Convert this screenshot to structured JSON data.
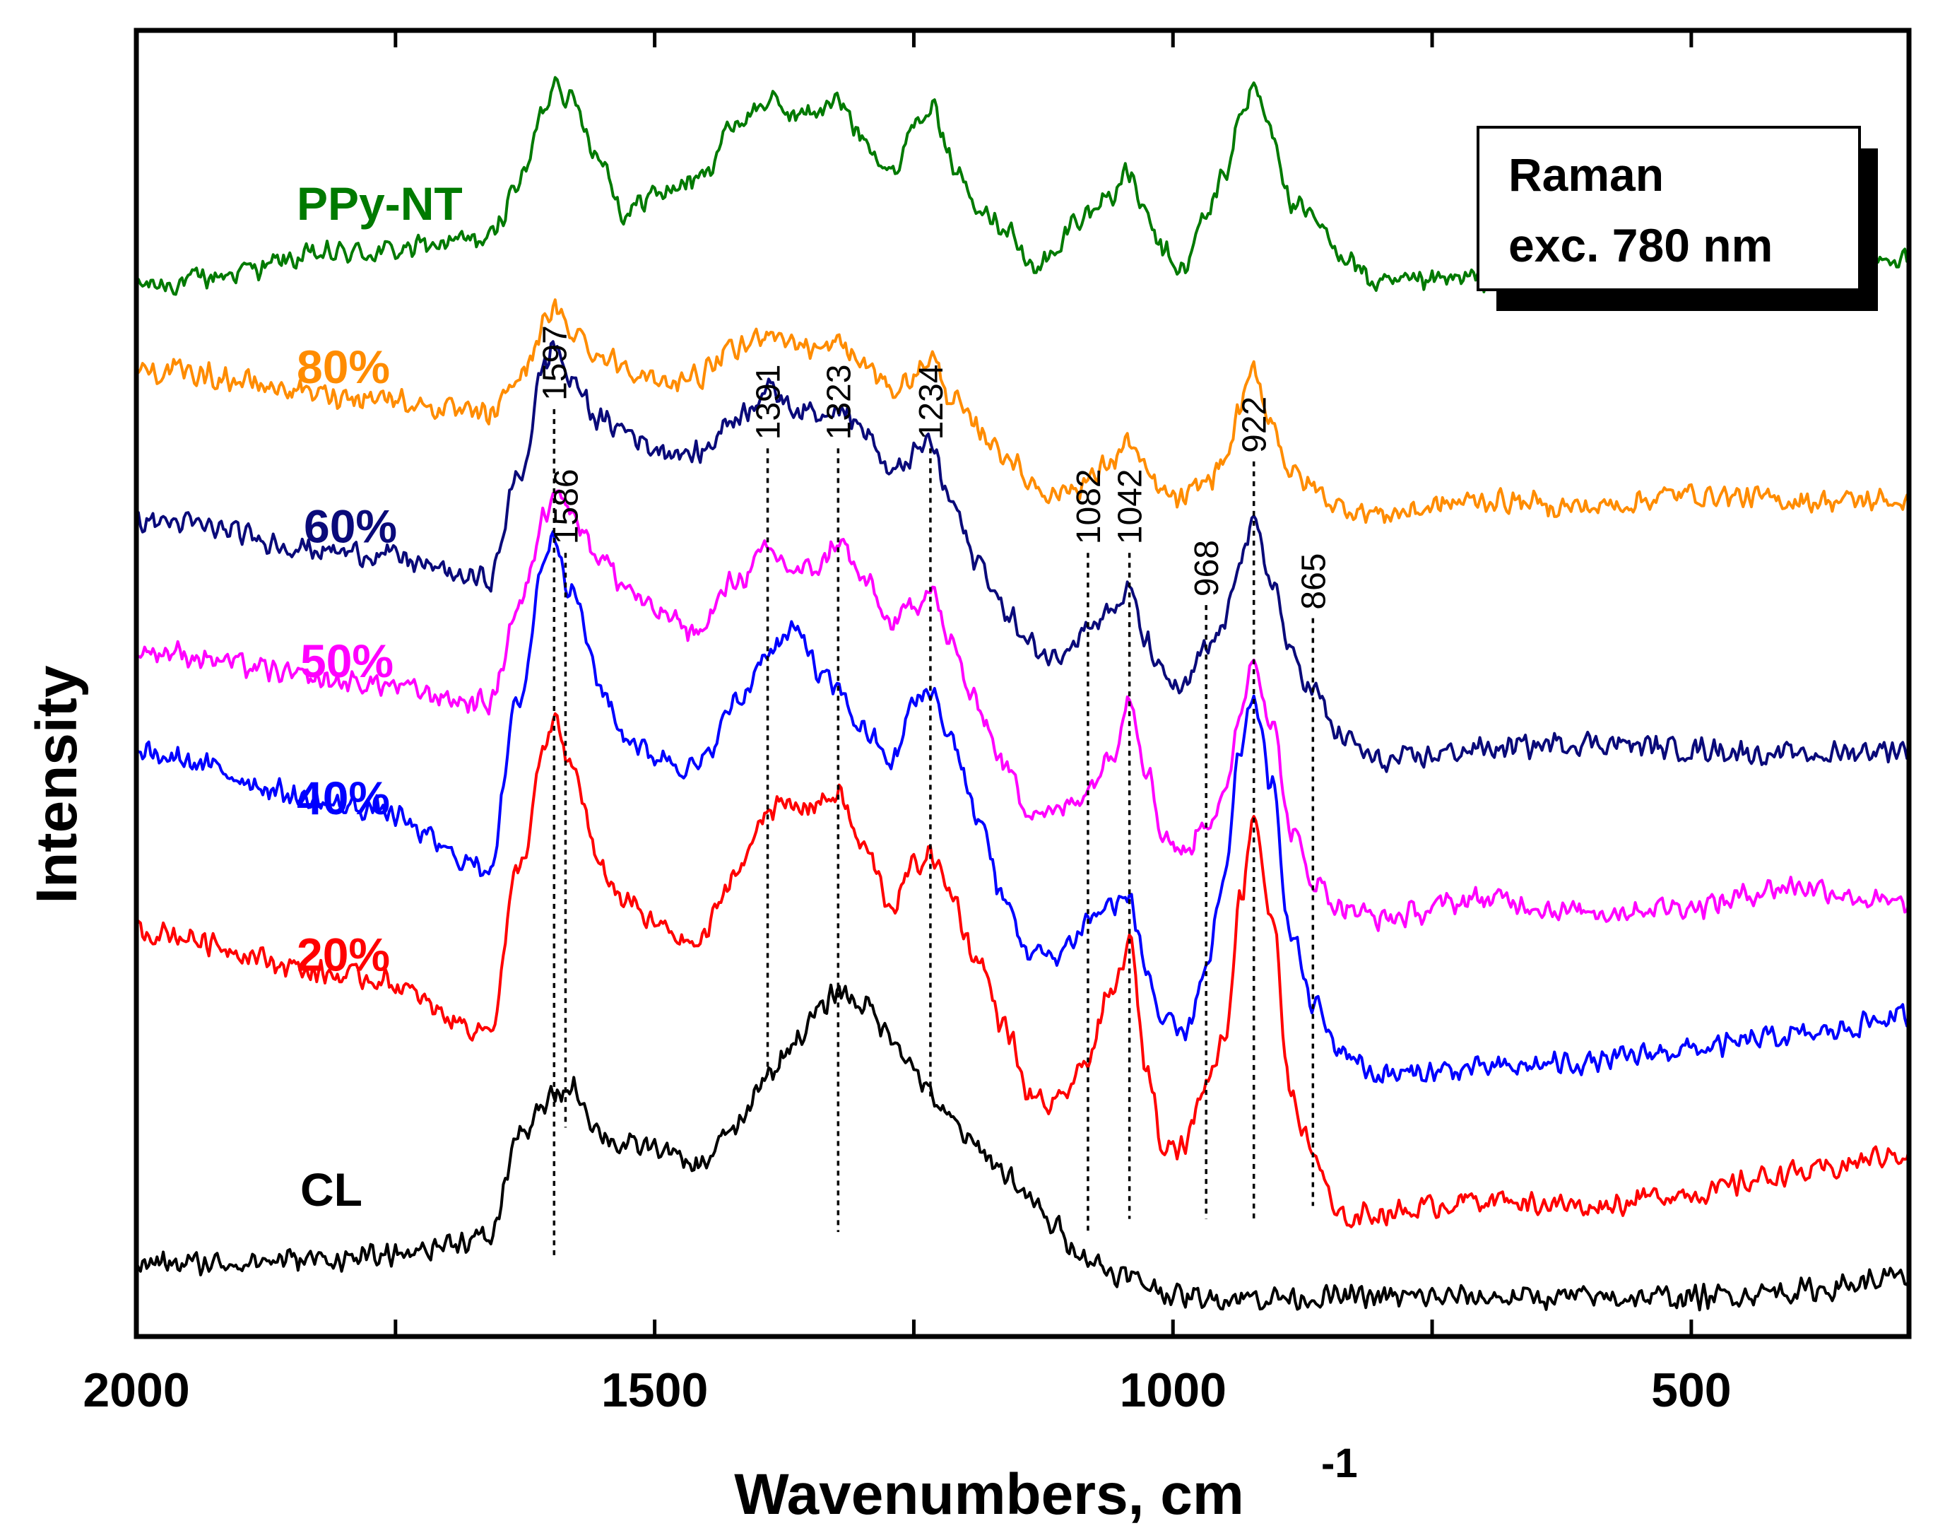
{
  "chart_data": {
    "type": "line",
    "title": "",
    "xlabel": "Wavenumbers, cm",
    "xlabel_sup": "-1",
    "ylabel": "Intensity",
    "xlim": [
      2000,
      290
    ],
    "ylim": [
      0,
      10
    ],
    "x_ticks": [
      2000,
      1500,
      1000,
      500
    ],
    "x_tick_labels": [
      "2000",
      "1500",
      "1000",
      "500"
    ],
    "legend_box": {
      "lines": [
        "Raman",
        "exc. 780 nm"
      ],
      "position": "top-right"
    },
    "peak_lines": [
      {
        "x": 1597,
        "label": "1597",
        "y_top": 7.1,
        "y_bottom": 0.6
      },
      {
        "x": 1586,
        "label": "1586",
        "y_top": 6.0,
        "y_bottom": 1.6
      },
      {
        "x": 1391,
        "label": "1391",
        "y_top": 6.8,
        "y_bottom": 2.0
      },
      {
        "x": 1323,
        "label": "1323",
        "y_top": 6.8,
        "y_bottom": 0.8
      },
      {
        "x": 1234,
        "label": "1234",
        "y_top": 6.8,
        "y_bottom": 1.8
      },
      {
        "x": 1082,
        "label": "1082",
        "y_top": 6.0,
        "y_bottom": 0.8
      },
      {
        "x": 1042,
        "label": "1042",
        "y_top": 6.0,
        "y_bottom": 0.9
      },
      {
        "x": 968,
        "label": "968",
        "y_top": 5.6,
        "y_bottom": 0.9
      },
      {
        "x": 922,
        "label": "922",
        "y_top": 6.7,
        "y_bottom": 0.9
      },
      {
        "x": 865,
        "label": "865",
        "y_top": 5.5,
        "y_bottom": 1.0
      }
    ],
    "series": [
      {
        "name": "PPy-NT",
        "label": "PPy-NT",
        "color": "#007a00",
        "x": [
          2000,
          1780,
          1660,
          1630,
          1605,
          1597,
          1580,
          1550,
          1530,
          1500,
          1460,
          1420,
          1391,
          1360,
          1340,
          1323,
          1300,
          1270,
          1250,
          1234,
          1215,
          1190,
          1160,
          1140,
          1115,
          1095,
          1082,
          1060,
          1042,
          1025,
          1010,
          990,
          968,
          950,
          935,
          922,
          905,
          885,
          865,
          840,
          800,
          700,
          600,
          500,
          400,
          290
        ],
        "values": [
          8.05,
          8.3,
          8.4,
          8.85,
          9.4,
          9.65,
          9.45,
          9.0,
          8.6,
          8.75,
          8.85,
          9.3,
          9.45,
          9.35,
          9.4,
          9.45,
          9.2,
          8.9,
          9.3,
          9.45,
          9.0,
          8.7,
          8.5,
          8.2,
          8.25,
          8.55,
          8.6,
          8.75,
          8.9,
          8.55,
          8.3,
          8.15,
          8.6,
          8.9,
          9.35,
          9.55,
          9.25,
          8.65,
          8.55,
          8.3,
          8.05,
          8.1,
          8.2,
          8.1,
          8.2,
          8.25
        ]
      },
      {
        "name": "80%",
        "label": "80%",
        "color": "#ff8c00",
        "x": [
          2000,
          1780,
          1660,
          1630,
          1605,
          1597,
          1580,
          1550,
          1530,
          1500,
          1460,
          1420,
          1391,
          1360,
          1340,
          1323,
          1300,
          1270,
          1250,
          1234,
          1215,
          1190,
          1160,
          1140,
          1115,
          1095,
          1082,
          1060,
          1042,
          1025,
          1010,
          990,
          968,
          950,
          935,
          922,
          905,
          885,
          865,
          840,
          800,
          700,
          600,
          500,
          400,
          290
        ],
        "values": [
          7.4,
          7.2,
          7.05,
          7.35,
          7.75,
          7.85,
          7.7,
          7.5,
          7.45,
          7.3,
          7.35,
          7.55,
          7.7,
          7.6,
          7.55,
          7.6,
          7.45,
          7.25,
          7.35,
          7.5,
          7.2,
          6.95,
          6.75,
          6.55,
          6.45,
          6.5,
          6.55,
          6.7,
          6.85,
          6.6,
          6.45,
          6.4,
          6.55,
          6.7,
          7.1,
          7.4,
          7.0,
          6.6,
          6.5,
          6.35,
          6.3,
          6.4,
          6.35,
          6.45,
          6.4,
          6.4
        ]
      },
      {
        "name": "60%",
        "label": "60%",
        "color": "#0a0a7a",
        "x": [
          2000,
          1780,
          1660,
          1630,
          1605,
          1597,
          1580,
          1550,
          1530,
          1500,
          1460,
          1420,
          1391,
          1360,
          1340,
          1323,
          1300,
          1270,
          1250,
          1234,
          1215,
          1190,
          1160,
          1140,
          1115,
          1095,
          1082,
          1060,
          1042,
          1025,
          1010,
          990,
          968,
          950,
          935,
          922,
          905,
          885,
          865,
          840,
          800,
          700,
          600,
          500,
          400,
          290
        ],
        "values": [
          6.25,
          6.0,
          5.8,
          6.6,
          7.45,
          7.6,
          7.3,
          7.0,
          6.95,
          6.8,
          6.75,
          7.05,
          7.25,
          7.1,
          7.05,
          7.15,
          6.95,
          6.6,
          6.75,
          6.85,
          6.4,
          5.95,
          5.55,
          5.3,
          5.2,
          5.35,
          5.45,
          5.55,
          5.7,
          5.3,
          5.05,
          4.95,
          5.25,
          5.45,
          6.0,
          6.2,
          5.8,
          5.2,
          4.95,
          4.6,
          4.4,
          4.5,
          4.55,
          4.5,
          4.45,
          4.5
        ]
      },
      {
        "name": "50%",
        "label": "50%",
        "color": "#ff00ff",
        "x": [
          2000,
          1780,
          1660,
          1630,
          1605,
          1597,
          1580,
          1550,
          1530,
          1500,
          1460,
          1420,
          1391,
          1360,
          1340,
          1323,
          1300,
          1270,
          1250,
          1234,
          1215,
          1190,
          1160,
          1140,
          1115,
          1095,
          1082,
          1060,
          1042,
          1025,
          1010,
          990,
          968,
          950,
          935,
          922,
          905,
          885,
          865,
          840,
          800,
          700,
          600,
          500,
          400,
          290
        ],
        "values": [
          5.25,
          5.0,
          4.85,
          5.6,
          6.3,
          6.55,
          6.3,
          5.95,
          5.75,
          5.55,
          5.4,
          5.8,
          6.0,
          5.85,
          5.9,
          6.1,
          5.8,
          5.45,
          5.6,
          5.75,
          5.3,
          4.85,
          4.35,
          4.05,
          4.0,
          4.1,
          4.2,
          4.45,
          4.9,
          4.35,
          3.85,
          3.7,
          3.95,
          4.1,
          4.8,
          5.2,
          4.7,
          3.85,
          3.5,
          3.3,
          3.2,
          3.35,
          3.25,
          3.3,
          3.45,
          3.3
        ]
      },
      {
        "name": "40%",
        "label": "40%",
        "color": "#0000ff",
        "x": [
          2000,
          1780,
          1660,
          1630,
          1605,
          1597,
          1580,
          1550,
          1530,
          1500,
          1460,
          1420,
          1391,
          1360,
          1340,
          1323,
          1300,
          1270,
          1250,
          1234,
          1215,
          1190,
          1160,
          1140,
          1115,
          1095,
          1082,
          1060,
          1042,
          1025,
          1010,
          990,
          968,
          950,
          935,
          922,
          905,
          885,
          865,
          840,
          800,
          700,
          600,
          500,
          400,
          290
        ],
        "values": [
          4.45,
          4.05,
          3.6,
          4.9,
          6.0,
          6.15,
          5.7,
          4.95,
          4.6,
          4.45,
          4.35,
          4.85,
          5.25,
          5.4,
          5.05,
          4.95,
          4.65,
          4.4,
          4.85,
          4.95,
          4.6,
          4.0,
          3.3,
          2.95,
          2.9,
          3.05,
          3.2,
          3.3,
          3.35,
          2.8,
          2.4,
          2.3,
          2.8,
          3.5,
          4.5,
          4.9,
          4.2,
          3.05,
          2.55,
          2.2,
          2.0,
          2.05,
          2.1,
          2.2,
          2.3,
          2.45
        ]
      },
      {
        "name": "20%",
        "label": "20%",
        "color": "#ff0000",
        "x": [
          2000,
          1780,
          1660,
          1630,
          1605,
          1597,
          1580,
          1550,
          1530,
          1500,
          1460,
          1420,
          1391,
          1360,
          1340,
          1323,
          1300,
          1270,
          1250,
          1234,
          1215,
          1190,
          1160,
          1140,
          1115,
          1095,
          1082,
          1060,
          1042,
          1025,
          1010,
          990,
          968,
          950,
          935,
          922,
          905,
          885,
          865,
          840,
          800,
          700,
          600,
          500,
          400,
          290
        ],
        "values": [
          3.1,
          2.75,
          2.35,
          3.6,
          4.5,
          4.7,
          4.35,
          3.55,
          3.35,
          3.15,
          3.0,
          3.55,
          4.05,
          4.05,
          4.1,
          4.15,
          3.75,
          3.3,
          3.6,
          3.7,
          3.4,
          2.9,
          2.35,
          1.85,
          1.75,
          1.95,
          2.15,
          2.6,
          3.0,
          2.05,
          1.5,
          1.45,
          1.95,
          2.3,
          3.35,
          4.0,
          3.2,
          1.8,
          1.4,
          0.9,
          0.95,
          1.05,
          1.0,
          1.1,
          1.25,
          1.4
        ]
      },
      {
        "name": "CL",
        "label": "CL",
        "color": "#000000",
        "x": [
          2000,
          1780,
          1660,
          1630,
          1605,
          1597,
          1580,
          1550,
          1530,
          1500,
          1460,
          1420,
          1391,
          1360,
          1340,
          1323,
          1300,
          1270,
          1250,
          1234,
          1215,
          1190,
          1160,
          1140,
          1115,
          1095,
          1082,
          1060,
          1042,
          1025,
          1010,
          990,
          968,
          950,
          935,
          922,
          905,
          885,
          865,
          840,
          800,
          700,
          600,
          500,
          400,
          290
        ],
        "values": [
          0.55,
          0.6,
          0.75,
          1.55,
          1.75,
          1.85,
          1.9,
          1.55,
          1.45,
          1.45,
          1.3,
          1.6,
          2.0,
          2.3,
          2.5,
          2.65,
          2.55,
          2.3,
          2.05,
          1.85,
          1.65,
          1.45,
          1.25,
          1.05,
          0.85,
          0.7,
          0.6,
          0.5,
          0.45,
          0.4,
          0.35,
          0.3,
          0.3,
          0.3,
          0.3,
          0.3,
          0.3,
          0.3,
          0.3,
          0.3,
          0.3,
          0.3,
          0.3,
          0.3,
          0.35,
          0.45
        ]
      }
    ]
  }
}
